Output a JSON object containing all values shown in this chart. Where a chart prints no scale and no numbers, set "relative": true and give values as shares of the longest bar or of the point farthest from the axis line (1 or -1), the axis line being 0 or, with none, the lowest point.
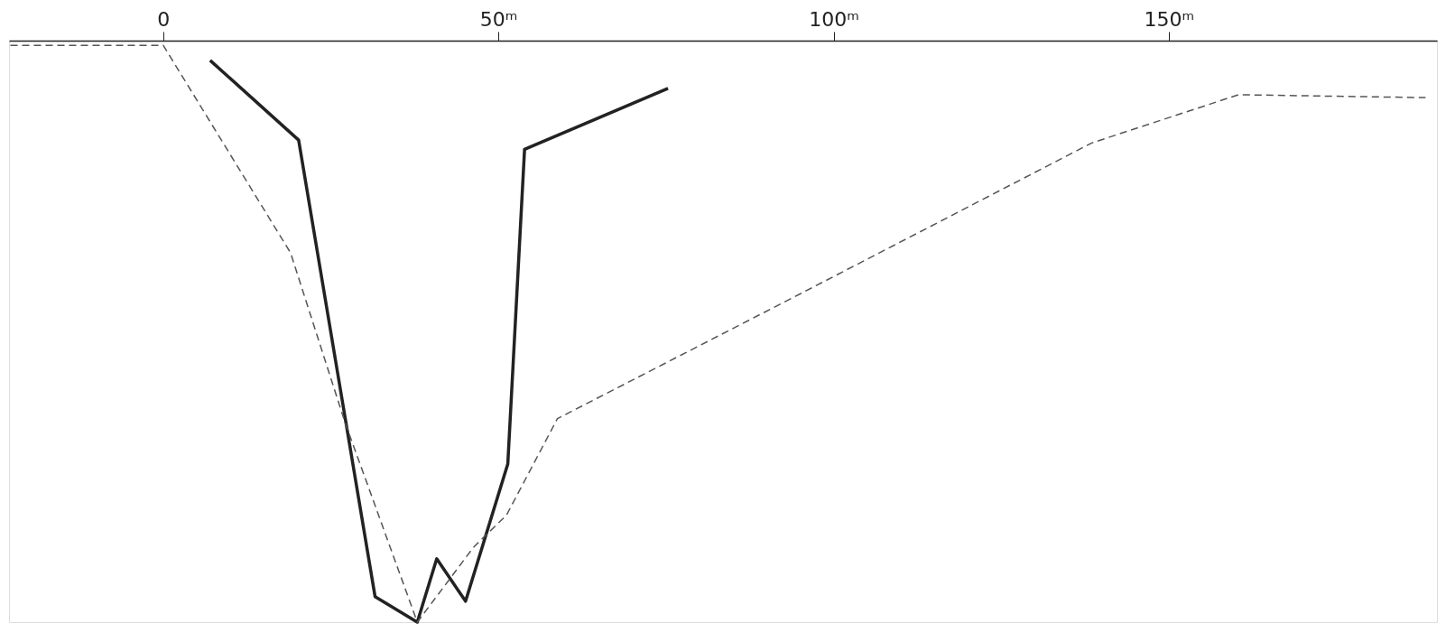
{
  "chart_data": {
    "type": "line",
    "relative": true,
    "xlim": [
      -23,
      190
    ],
    "xticks": [
      0,
      {
        "value": 50,
        "label": "50ᵐ"
      },
      {
        "value": 100,
        "label": "100ᵐ"
      },
      {
        "value": 150,
        "label": "150ᵐ"
      }
    ],
    "grid": false,
    "marker": "none",
    "series": [
      {
        "color": "#222222",
        "line_style": "solid",
        "x": [
          7.0,
          20.2,
          31.6,
          37.9,
          40.8,
          45.1,
          51.4,
          53.9,
          75.3
        ],
        "values": [
          -0.034,
          -0.171,
          -0.956,
          -1,
          -0.891,
          -0.964,
          -0.728,
          -0.187,
          -0.082
        ]
      },
      {
        "color": "#555555",
        "line_style": "dashed",
        "x": [
          -22.8,
          0,
          19.0,
          27.1,
          37.9,
          46.3,
          51.2,
          58.8,
          92.4,
          138.5,
          160.4,
          188.3
        ],
        "values": [
          -0.008,
          -0.008,
          -0.365,
          -0.656,
          -1,
          -0.871,
          -0.816,
          -0.65,
          -0.451,
          -0.176,
          -0.093,
          -0.098
        ]
      }
    ]
  }
}
